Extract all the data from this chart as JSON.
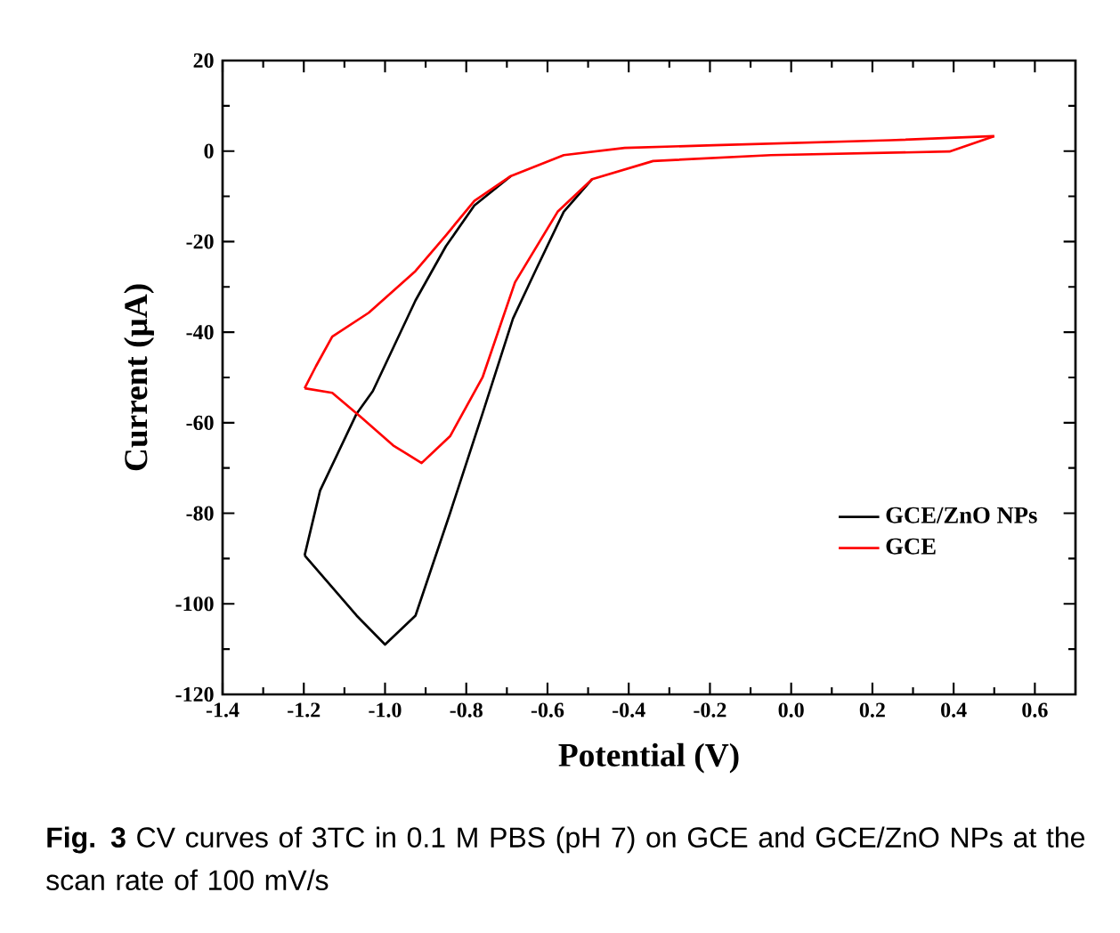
{
  "chart_data": {
    "type": "line",
    "xlabel": "Potential (V)",
    "ylabel": "Current (μA)",
    "annotations": [
      "**Fig. 3** CV curves of 3TC in 0.1 M PBS (pH 7) on GCE and GCE/ZnO NPs at the scan rate of 100 mV/s"
    ],
    "xlim": [
      -1.4,
      0.7
    ],
    "ylim": [
      -120,
      20
    ],
    "xticks": [
      -1.4,
      -1.2,
      {
        "value": -1.0,
        "label": "-1.0"
      },
      -0.8,
      -0.6,
      -0.4,
      -0.2,
      {
        "value": 0.0,
        "label": "0.0"
      },
      0.2,
      0.4,
      0.6
    ],
    "yticks": [
      -120,
      -100,
      -80,
      -60,
      -40,
      -20,
      0,
      20
    ],
    "legend": "bottom right",
    "grid": false,
    "marker": "none",
    "line_style": "solid",
    "series": [
      {
        "name": "GCE/ZnO NPs",
        "color": "#000000",
        "x": [
          -1.198,
          -1.16,
          -1.07,
          -1.03,
          -0.925,
          -0.85,
          -0.78,
          -0.69
        ],
        "values": [
          -89.3,
          -75,
          -58,
          -53,
          -33,
          -21,
          -12,
          -5.5
        ]
      },
      {
        "color": "#000000",
        "x": [
          -1.198,
          -1.07,
          -1.0,
          -0.925,
          -0.84,
          -0.76,
          -0.685,
          -0.63,
          -0.56,
          -0.49
        ],
        "values": [
          -89.3,
          -102.6,
          -109,
          -102.6,
          -80,
          -58,
          -37,
          -26.5,
          -13.4,
          -6.2
        ]
      },
      {
        "name": "GCE",
        "color": "#ff0000",
        "x": [
          -1.198,
          -1.17,
          -1.13,
          -1.04,
          -0.925,
          -0.85,
          -0.78,
          -0.69,
          -0.56,
          -0.41,
          -0.19,
          0.245,
          0.5
        ],
        "values": [
          -52.4,
          -47.5,
          -41,
          -35.7,
          -26.5,
          -18.6,
          -11,
          -5.5,
          -0.9,
          0.7,
          1.3,
          2.4,
          3.3
        ]
      },
      {
        "color": "#ff0000",
        "x": [
          -1.198,
          -1.13,
          -1.06,
          -0.98,
          -0.91,
          -0.84,
          -0.76,
          -0.68,
          -0.575,
          -0.49,
          -0.34,
          -0.05,
          0.39,
          0.5
        ],
        "values": [
          -52.4,
          -53.4,
          -58.7,
          -65,
          -68.9,
          -63,
          -50,
          -29,
          -13.4,
          -6.2,
          -2.2,
          -0.9,
          -0.1,
          3.3
        ]
      }
    ]
  }
}
